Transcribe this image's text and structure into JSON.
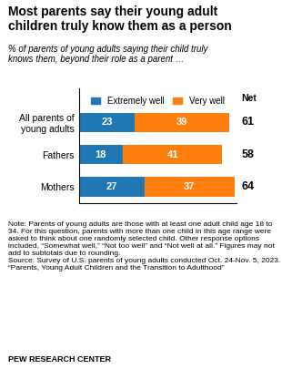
{
  "chart_data": {
    "type": "bar",
    "orientation": "horizontal",
    "stacked": true,
    "data_labels": true,
    "tick_labels": "y",
    "title": "Most parents say their young adult\nchildren truly know them as a person",
    "subtitle": "% of parents of young adults saying their child truly\nknows them, beyond their role as a parent …",
    "categories": [
      "All parents of\nyoung adults",
      "Fathers",
      "Mothers"
    ],
    "series": [
      {
        "name": "Extremely well",
        "values": [
          23,
          18,
          27
        ]
      },
      {
        "name": "Very well",
        "values": [
          39,
          41,
          37
        ]
      }
    ],
    "net_label": "Net",
    "net": [
      61,
      58,
      64
    ],
    "xlim": [
      0,
      65
    ],
    "legend": "upper center",
    "note": "Note: Parents of young adults are those with at least one adult child age 18 to 34. For this question, parents with more than one child in this age range were asked to think about one randomly selected child. Other response options included, “Somewhat well,” “Not too well” and “Not well at all.” Figures may not add to subtotals due to rounding.\nSource: Survey of U.S. parents of young adults conducted Oct. 24-Nov. 5, 2023.\n“Parents, Young Adult Children and the Transition to Adulthood”",
    "credit": "PEW RESEARCH CENTER"
  }
}
